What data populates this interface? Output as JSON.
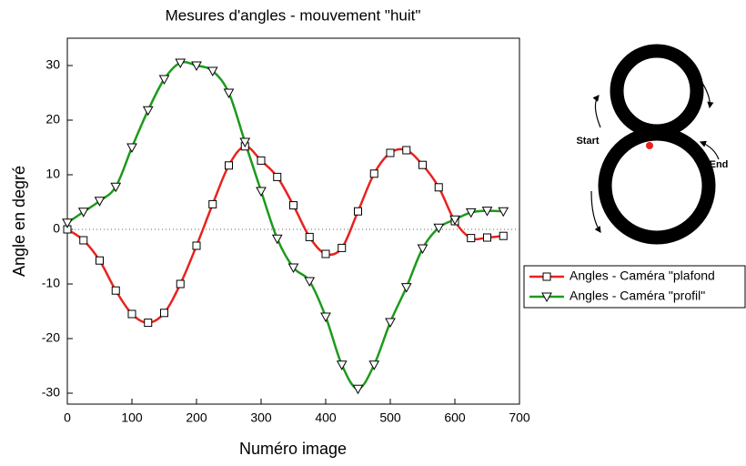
{
  "chart_data": {
    "type": "line",
    "title": "Mesures d'angles - mouvement \"huit\"",
    "x_label": "Numéro image",
    "y_label": "Angle en degré",
    "x": [
      0,
      25,
      50,
      75,
      100,
      125,
      150,
      175,
      200,
      225,
      250,
      275,
      300,
      325,
      350,
      375,
      400,
      425,
      450,
      475,
      500,
      525,
      550,
      575,
      600,
      625,
      650,
      675
    ],
    "series": [
      {
        "name": "Angles - Caméra \"plafond",
        "color": "#e8231e",
        "marker": "square",
        "values": [
          0,
          -2,
          -5.7,
          -11.2,
          -15.5,
          -17.1,
          -15.3,
          -10,
          -3,
          4.6,
          11.7,
          15.2,
          12.6,
          9.6,
          4.4,
          -1.4,
          -4.5,
          -3.4,
          3.3,
          10.2,
          14,
          14.5,
          11.8,
          7.7,
          1.5,
          -1.6,
          -1.5,
          -1.2
        ]
      },
      {
        "name": "Angles - Caméra \"profil\"",
        "color": "#1c9a1c",
        "marker": "triangle-down",
        "values": [
          1.2,
          3.2,
          5.2,
          7.8,
          15,
          21.8,
          27.5,
          30.5,
          30,
          29,
          25,
          16,
          7,
          -1.7,
          -7,
          -9.5,
          -16,
          -24.8,
          -29.2,
          -24.8,
          -17,
          -10.6,
          -3.5,
          0.3,
          1.8,
          3.1,
          3.4,
          3.3
        ]
      }
    ],
    "xlim": [
      0,
      700
    ],
    "xticks": [
      0,
      100,
      200,
      300,
      400,
      500,
      600,
      700
    ],
    "ylim": [
      -32,
      35
    ],
    "yticks": [
      -30,
      -20,
      -10,
      0,
      10,
      20,
      30
    ],
    "zero_line": true,
    "annotations": [
      "Start",
      "End"
    ]
  }
}
